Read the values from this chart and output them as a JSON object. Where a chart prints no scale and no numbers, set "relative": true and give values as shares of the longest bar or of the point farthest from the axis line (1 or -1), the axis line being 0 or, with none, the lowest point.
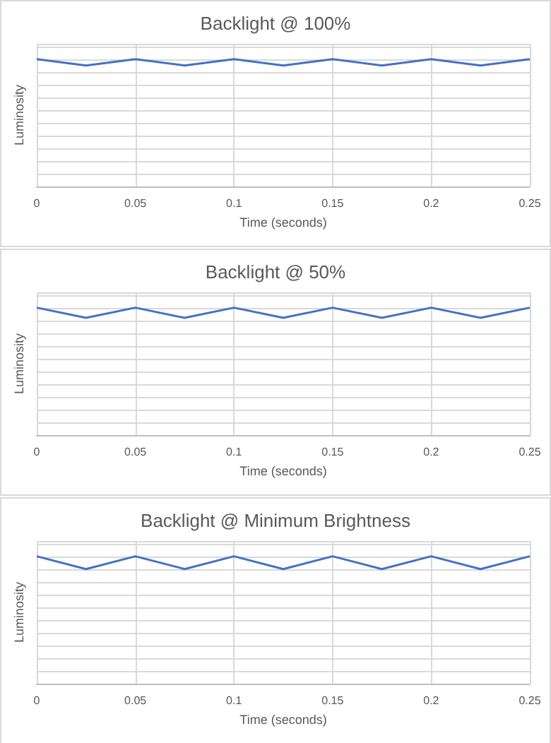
{
  "chart_data": [
    {
      "type": "line",
      "title": "Backlight @ 100%",
      "xlabel": "Time (seconds)",
      "ylabel": "Luminosity",
      "relative": true,
      "x": [
        0,
        0.025,
        0.05,
        0.075,
        0.1,
        0.125,
        0.15,
        0.175,
        0.2,
        0.225,
        0.25
      ],
      "series": [
        {
          "color": "#4472c4",
          "values": [
            1,
            0.95,
            1,
            0.95,
            1,
            0.95,
            1,
            0.95,
            1,
            0.95,
            1
          ]
        }
      ],
      "xlim": [
        0,
        0.25
      ],
      "xticks": [
        0,
        0.05,
        0.1,
        0.15,
        0.2,
        0.25
      ],
      "grid": true,
      "marker": "none",
      "line_style": "solid"
    },
    {
      "type": "line",
      "title": "Backlight @ 50%",
      "xlabel": "Time (seconds)",
      "ylabel": "Luminosity",
      "relative": true,
      "x": [
        0,
        0.025,
        0.05,
        0.075,
        0.1,
        0.125,
        0.15,
        0.175,
        0.2,
        0.225,
        0.25
      ],
      "series": [
        {
          "color": "#4472c4",
          "values": [
            1,
            0.92,
            1,
            0.92,
            1,
            0.92,
            1,
            0.92,
            1,
            0.92,
            1
          ]
        }
      ],
      "xlim": [
        0,
        0.25
      ],
      "xticks": [
        0,
        0.05,
        0.1,
        0.15,
        0.2,
        0.25
      ],
      "grid": true,
      "marker": "none",
      "line_style": "solid"
    },
    {
      "type": "line",
      "title": "Backlight @ Minimum Brightness",
      "xlabel": "Time (seconds)",
      "ylabel": "Luminosity",
      "relative": true,
      "x": [
        0,
        0.025,
        0.05,
        0.075,
        0.1,
        0.125,
        0.15,
        0.175,
        0.2,
        0.225,
        0.25
      ],
      "series": [
        {
          "color": "#4472c4",
          "values": [
            1,
            0.9,
            1,
            0.9,
            1,
            0.9,
            1,
            0.9,
            1,
            0.9,
            1
          ]
        }
      ],
      "xlim": [
        0,
        0.25
      ],
      "xticks": [
        0,
        0.05,
        0.1,
        0.15,
        0.2,
        0.25
      ],
      "grid": true,
      "marker": "none",
      "line_style": "solid"
    }
  ]
}
